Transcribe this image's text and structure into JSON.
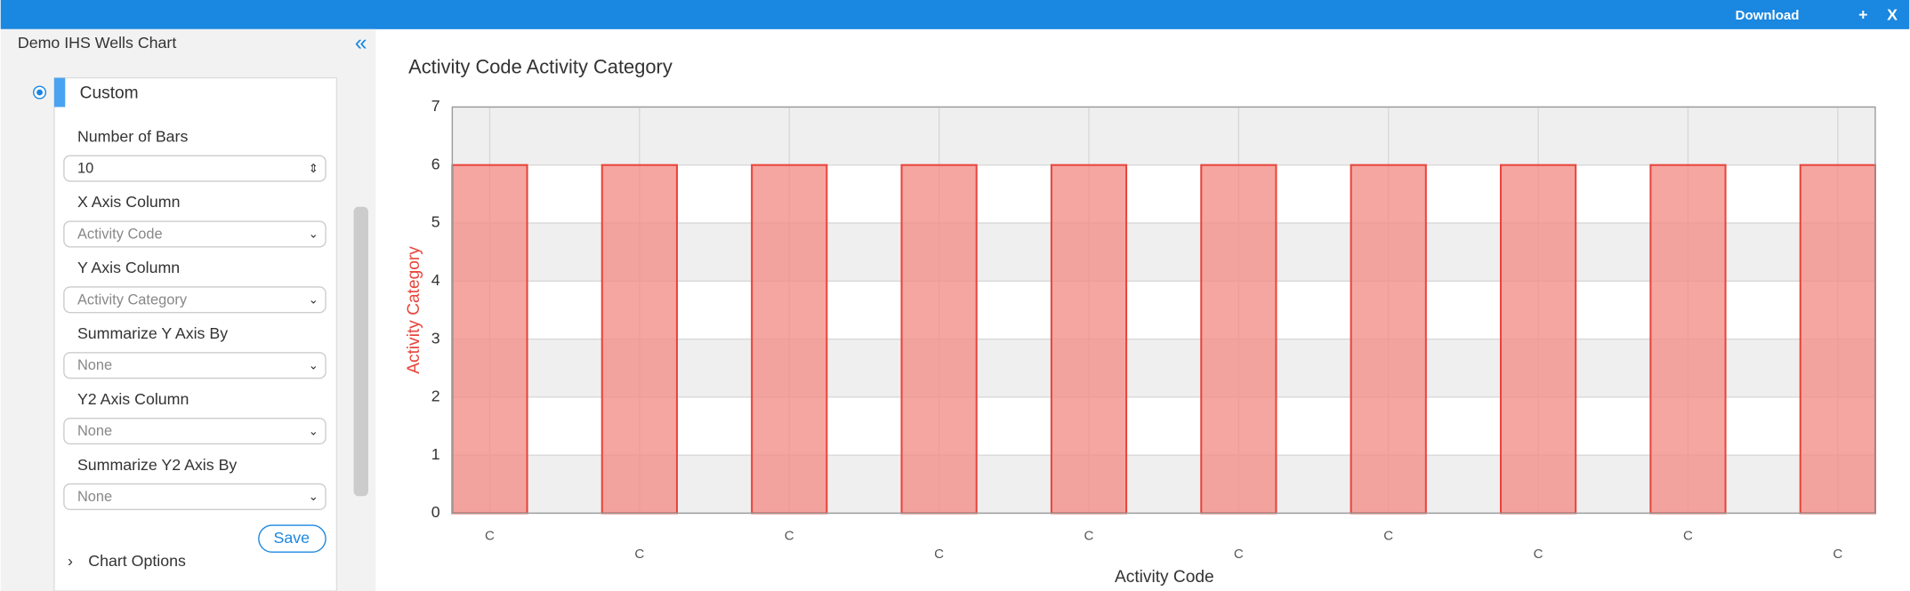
{
  "toolbar": {
    "download": "Download",
    "add": "+",
    "close": "X"
  },
  "sidebar": {
    "title": "Demo IHS Wells Chart",
    "section": "Custom",
    "fields": [
      {
        "label": "Number of Bars",
        "value": "10"
      },
      {
        "label": "X Axis Column",
        "value": "Activity Code"
      },
      {
        "label": "Y Axis Column",
        "value": "Activity Category"
      },
      {
        "label": "Summarize Y Axis By",
        "value": "None"
      },
      {
        "label": "Y2 Axis Column",
        "value": "None"
      },
      {
        "label": "Summarize Y2 Axis By",
        "value": "None"
      }
    ],
    "save": "Save",
    "options": "Chart Options"
  },
  "chart_data": {
    "type": "bar",
    "title": "Activity Code Activity Category",
    "categories": [
      "C",
      "C",
      "C",
      "C",
      "C",
      "C",
      "C",
      "C",
      "C",
      "C"
    ],
    "values": [
      6,
      6,
      6,
      6,
      6,
      6,
      6,
      6,
      6,
      6
    ],
    "color": "#f4908a",
    "edge": "#e8453c",
    "ylim": [
      0,
      7
    ],
    "yticks": [
      0,
      1,
      2,
      3,
      4,
      5,
      6,
      7
    ],
    "grid": true,
    "xlabel": "Activity Code",
    "ylabel": "Activity Category"
  }
}
